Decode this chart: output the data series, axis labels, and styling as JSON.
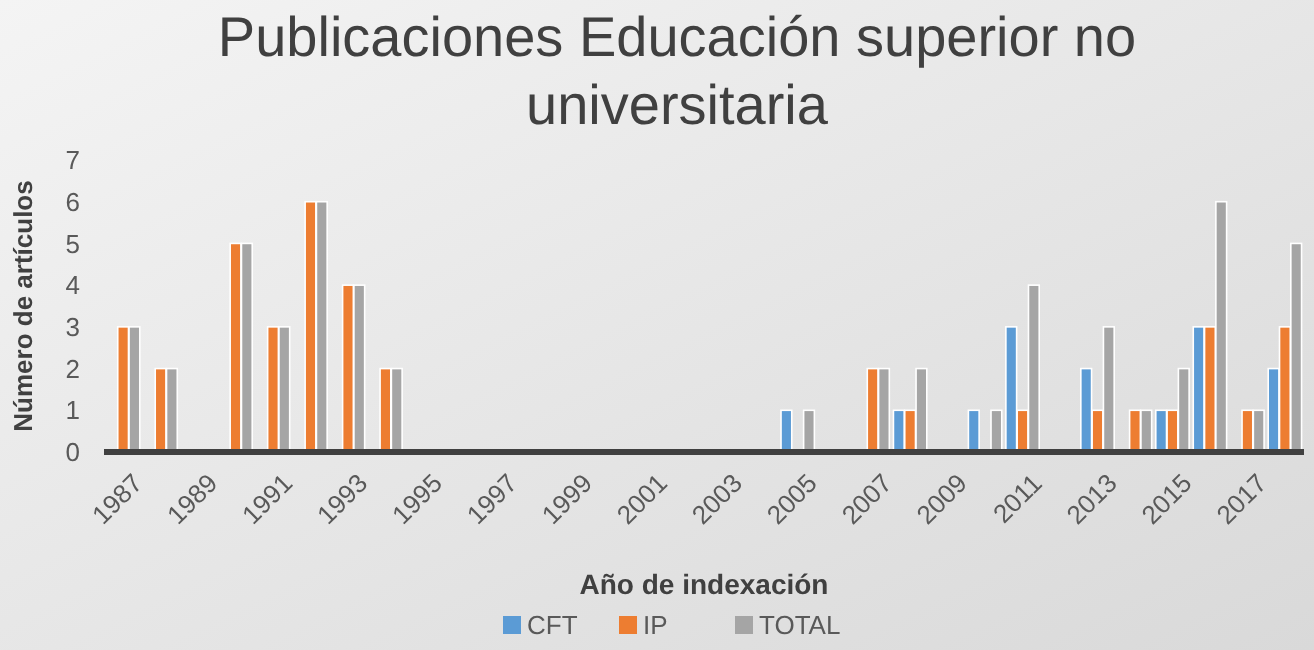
{
  "chart_data": {
    "type": "bar",
    "title": "Publicaciones Educación superior no universitaria",
    "xlabel": "Año de indexación",
    "ylabel": "Número de artículos",
    "categories": [
      "1987",
      null,
      "1989",
      null,
      "1991",
      null,
      "1993",
      null,
      "1995",
      null,
      "1997",
      null,
      "1999",
      null,
      "2001",
      null,
      "2003",
      null,
      "2005",
      null,
      "2007",
      null,
      "2009",
      null,
      "2011",
      null,
      "2013",
      null,
      "2015",
      null,
      "2017",
      null
    ],
    "series": [
      {
        "name": "CFT",
        "color": "#5b9bd5",
        "values": [
          0,
          0,
          0,
          0,
          0,
          0,
          0,
          0,
          0,
          0,
          0,
          0,
          0,
          0,
          0,
          0,
          0,
          0,
          1,
          0,
          0,
          1,
          0,
          1,
          3,
          0,
          2,
          0,
          1,
          3,
          0,
          2
        ]
      },
      {
        "name": "IP",
        "color": "#ed7d31",
        "values": [
          3,
          2,
          0,
          5,
          3,
          6,
          4,
          2,
          0,
          0,
          0,
          0,
          0,
          0,
          0,
          0,
          0,
          0,
          0,
          0,
          2,
          1,
          0,
          0,
          1,
          0,
          1,
          1,
          1,
          3,
          1,
          3
        ]
      },
      {
        "name": "TOTAL",
        "color": "#a5a5a5",
        "values": [
          3,
          2,
          0,
          5,
          3,
          6,
          4,
          2,
          0,
          0,
          0,
          0,
          0,
          0,
          0,
          0,
          0,
          0,
          1,
          0,
          2,
          2,
          0,
          1,
          4,
          0,
          3,
          1,
          2,
          6,
          1,
          5
        ]
      }
    ],
    "ylim": [
      0,
      7
    ],
    "yticks": [
      0,
      1,
      2,
      3,
      4,
      5,
      6,
      7
    ],
    "grid": false,
    "legend": "bottom"
  }
}
